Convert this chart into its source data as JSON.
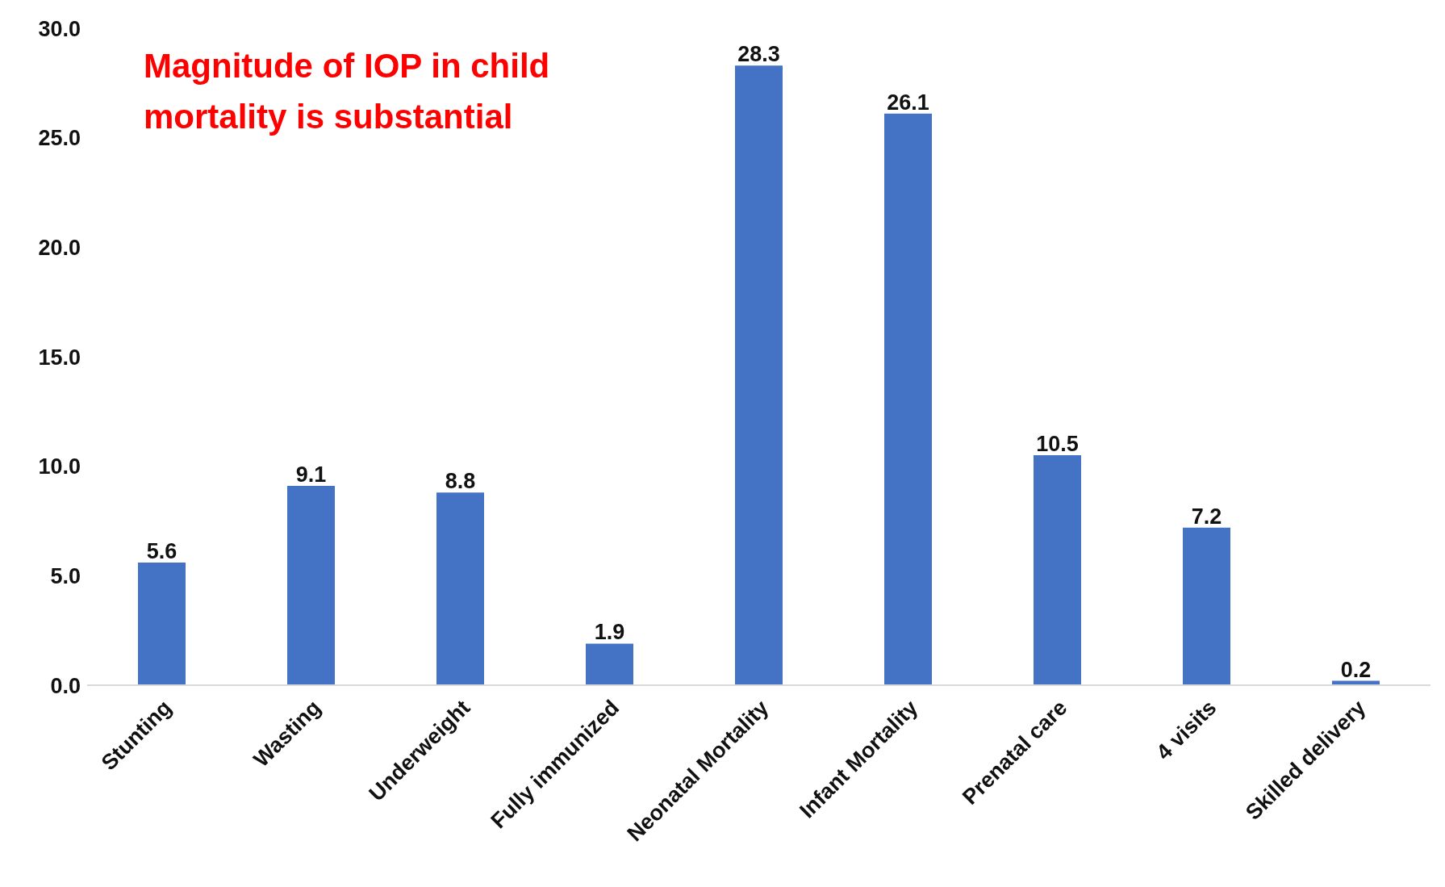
{
  "chart_data": {
    "type": "bar",
    "title": "Magnitude of IOP in child mortality is substantial",
    "categories": [
      "Stunting",
      "Wasting",
      "Underweight",
      "Fully immunized",
      "Neonatal Mortality",
      "Infant Mortality",
      "Prenatal care",
      "4 visits",
      "Skilled delivery"
    ],
    "values": [
      5.6,
      9.1,
      8.8,
      1.9,
      28.3,
      26.1,
      10.5,
      7.2,
      0.2
    ],
    "color": "#4472c4",
    "ylim": [
      0,
      30
    ],
    "yticks": [
      {
        "value": 0,
        "label": "0.0"
      },
      {
        "value": 5,
        "label": "5.0"
      },
      {
        "value": 10,
        "label": "10.0"
      },
      {
        "value": 15,
        "label": "15.0"
      },
      {
        "value": 20,
        "label": "20.0"
      },
      {
        "value": 25,
        "label": "25.0"
      },
      {
        "value": 30,
        "label": "30.0"
      }
    ],
    "data_labels": true,
    "grid": false,
    "legend": false
  }
}
